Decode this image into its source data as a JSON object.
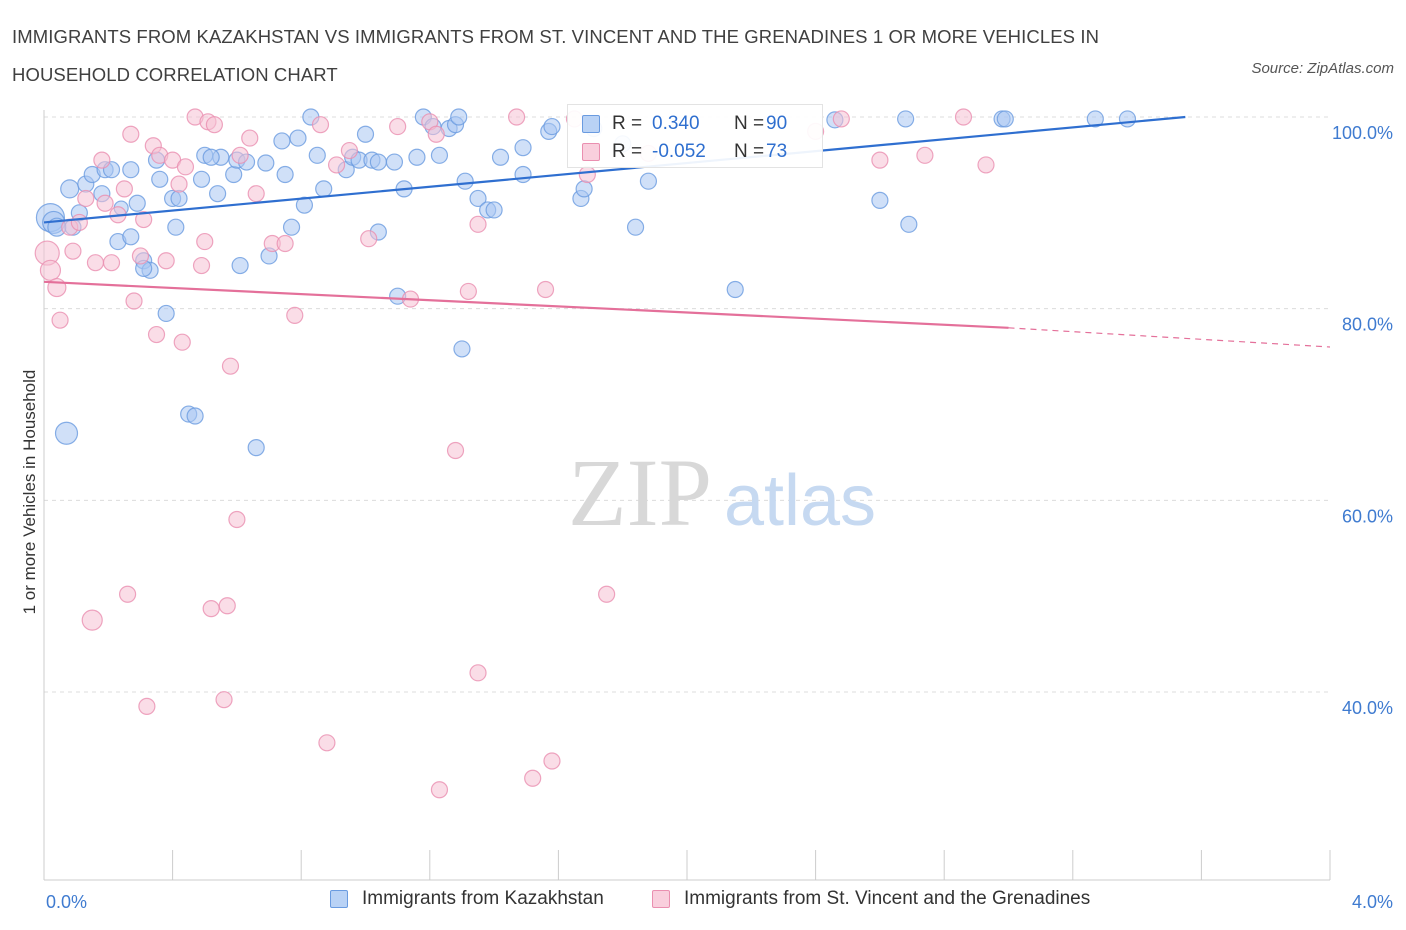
{
  "title": "IMMIGRANTS FROM KAZAKHSTAN VS IMMIGRANTS FROM ST. VINCENT AND THE GRENADINES 1 OR MORE VEHICLES IN HOUSEHOLD CORRELATION CHART",
  "source": "Source: ZipAtlas.com",
  "watermark": {
    "zip": "ZIP",
    "atlas": "atlas"
  },
  "legend_stats": [
    {
      "r_label": "R =",
      "r_value": "0.340",
      "n_label": "N =",
      "n_value": "90",
      "color": "#8fb4ee"
    },
    {
      "r_label": "R =",
      "r_value": "-0.052",
      "n_label": "N =",
      "n_value": "73",
      "color": "#f3a7c0"
    }
  ],
  "chart_data": {
    "type": "scatter",
    "title": "IMMIGRANTS FROM KAZAKHSTAN VS IMMIGRANTS FROM ST. VINCENT AND THE GRENADINES 1 OR MORE VEHICLES IN HOUSEHOLD CORRELATION CHART",
    "xlabel": "",
    "ylabel": "1 or more Vehicles in Household",
    "xlim": [
      0,
      4
    ],
    "ylim": [
      20,
      102
    ],
    "x_tick_labels": [
      "0.0%",
      "4.0%"
    ],
    "y_ticks": [
      40,
      60,
      80,
      100
    ],
    "y_tick_labels": [
      "40.0%",
      "60.0%",
      "80.0%",
      "100.0%"
    ],
    "grid": true,
    "legend_position": "bottom",
    "series": [
      {
        "name": "Immigrants from Kazakhstan",
        "color": "#6a9be0",
        "fill": "#a9c7f2",
        "trend": {
          "x0": 0.0,
          "y0": 89.0,
          "x1": 3.55,
          "y1": 100.0,
          "dash_to": null
        },
        "points": [
          [
            0.02,
            89.5,
            14
          ],
          [
            0.03,
            89.0,
            11
          ],
          [
            0.04,
            88.5,
            9
          ],
          [
            0.07,
            67.0,
            11
          ],
          [
            0.08,
            92.5,
            9
          ],
          [
            0.09,
            88.5,
            8
          ],
          [
            0.13,
            93.0,
            8
          ],
          [
            0.15,
            94.0,
            8
          ],
          [
            0.18,
            92.0,
            8
          ],
          [
            0.19,
            94.5,
            8
          ],
          [
            0.21,
            94.5,
            8
          ],
          [
            0.23,
            87.0,
            8
          ],
          [
            0.24,
            90.5,
            7
          ],
          [
            0.27,
            87.5,
            8
          ],
          [
            0.29,
            91.0,
            8
          ],
          [
            0.31,
            85.0,
            8
          ],
          [
            0.33,
            84.0,
            8
          ],
          [
            0.35,
            95.5,
            8
          ],
          [
            0.36,
            93.5,
            8
          ],
          [
            0.38,
            79.5,
            8
          ],
          [
            0.4,
            91.5,
            8
          ],
          [
            0.41,
            88.5,
            8
          ],
          [
            0.42,
            91.5,
            8
          ],
          [
            0.45,
            69.0,
            8
          ],
          [
            0.47,
            68.8,
            8
          ],
          [
            0.49,
            93.5,
            8
          ],
          [
            0.5,
            96.0,
            8
          ],
          [
            0.54,
            92.0,
            8
          ],
          [
            0.55,
            95.8,
            8
          ],
          [
            0.59,
            94.0,
            8
          ],
          [
            0.6,
            95.5,
            8
          ],
          [
            0.61,
            84.5,
            8
          ],
          [
            0.63,
            95.3,
            8
          ],
          [
            0.66,
            65.5,
            8
          ],
          [
            0.69,
            95.2,
            8
          ],
          [
            0.7,
            85.5,
            8
          ],
          [
            0.74,
            97.5,
            8
          ],
          [
            0.75,
            94.0,
            8
          ],
          [
            0.77,
            88.5,
            8
          ],
          [
            0.79,
            97.8,
            8
          ],
          [
            0.81,
            90.8,
            8
          ],
          [
            0.83,
            100.0,
            8
          ],
          [
            0.85,
            96.0,
            8
          ],
          [
            0.87,
            92.5,
            8
          ],
          [
            0.94,
            94.5,
            8
          ],
          [
            0.96,
            95.8,
            8
          ],
          [
            0.98,
            95.5,
            8
          ],
          [
            1.0,
            98.2,
            8
          ],
          [
            1.02,
            95.5,
            8
          ],
          [
            1.04,
            95.3,
            8
          ],
          [
            1.04,
            88.0,
            8
          ],
          [
            1.09,
            95.3,
            8
          ],
          [
            1.1,
            81.3,
            8
          ],
          [
            1.12,
            92.5,
            8
          ],
          [
            1.16,
            95.8,
            8
          ],
          [
            1.18,
            100.0,
            8
          ],
          [
            1.21,
            99.0,
            8
          ],
          [
            1.23,
            96.0,
            8
          ],
          [
            1.26,
            98.8,
            8
          ],
          [
            1.28,
            99.2,
            8
          ],
          [
            1.29,
            100.0,
            8
          ],
          [
            1.3,
            75.8,
            8
          ],
          [
            1.31,
            93.3,
            8
          ],
          [
            1.35,
            91.5,
            8
          ],
          [
            1.38,
            90.3,
            8
          ],
          [
            1.4,
            90.3,
            8
          ],
          [
            1.42,
            95.8,
            8
          ],
          [
            1.49,
            94.0,
            8
          ],
          [
            1.49,
            96.8,
            8
          ],
          [
            1.57,
            98.5,
            8
          ],
          [
            1.58,
            99.0,
            8
          ],
          [
            1.67,
            91.5,
            8
          ],
          [
            1.68,
            92.5,
            8
          ],
          [
            1.71,
            98.8,
            8
          ],
          [
            1.8,
            97.2,
            8
          ],
          [
            1.84,
            88.5,
            8
          ],
          [
            1.88,
            93.3,
            8
          ],
          [
            2.15,
            82.0,
            8
          ],
          [
            2.46,
            99.7,
            8
          ],
          [
            2.6,
            91.3,
            8
          ],
          [
            2.68,
            99.8,
            8
          ],
          [
            2.69,
            88.8,
            8
          ],
          [
            2.98,
            99.8,
            8
          ],
          [
            2.99,
            99.8,
            8
          ],
          [
            3.27,
            99.8,
            8
          ],
          [
            3.37,
            99.8,
            8
          ],
          [
            0.52,
            95.8,
            8
          ],
          [
            0.31,
            84.2,
            8
          ],
          [
            0.27,
            94.5,
            8
          ],
          [
            0.11,
            90.0,
            8
          ]
        ]
      },
      {
        "name": "Immigrants from St. Vincent and the Grenadines",
        "color": "#ea8fb0",
        "fill": "#f6c1d3",
        "trend": {
          "x0": 0.0,
          "y0": 82.8,
          "x1": 3.0,
          "y1": 78.0,
          "dash_to": {
            "x": 4.0,
            "y": 76.0
          }
        },
        "points": [
          [
            0.01,
            85.8,
            12
          ],
          [
            0.02,
            84.0,
            10
          ],
          [
            0.04,
            82.2,
            9
          ],
          [
            0.05,
            78.8,
            8
          ],
          [
            0.08,
            88.5,
            8
          ],
          [
            0.09,
            86.0,
            8
          ],
          [
            0.11,
            89.0,
            8
          ],
          [
            0.13,
            91.5,
            8
          ],
          [
            0.15,
            47.5,
            10
          ],
          [
            0.16,
            84.8,
            8
          ],
          [
            0.18,
            95.5,
            8
          ],
          [
            0.19,
            91.0,
            8
          ],
          [
            0.21,
            84.8,
            8
          ],
          [
            0.23,
            89.8,
            8
          ],
          [
            0.25,
            92.5,
            8
          ],
          [
            0.26,
            50.2,
            8
          ],
          [
            0.27,
            98.2,
            8
          ],
          [
            0.28,
            80.8,
            8
          ],
          [
            0.3,
            85.5,
            8
          ],
          [
            0.31,
            89.3,
            8
          ],
          [
            0.32,
            38.5,
            8
          ],
          [
            0.34,
            97.0,
            8
          ],
          [
            0.35,
            77.3,
            8
          ],
          [
            0.36,
            96.0,
            8
          ],
          [
            0.38,
            85.0,
            8
          ],
          [
            0.4,
            95.5,
            8
          ],
          [
            0.42,
            93.0,
            8
          ],
          [
            0.43,
            76.5,
            8
          ],
          [
            0.44,
            94.8,
            8
          ],
          [
            0.47,
            100.0,
            8
          ],
          [
            0.49,
            84.5,
            8
          ],
          [
            0.5,
            87.0,
            8
          ],
          [
            0.51,
            99.5,
            8
          ],
          [
            0.53,
            99.2,
            8
          ],
          [
            0.52,
            48.7,
            8
          ],
          [
            0.56,
            39.2,
            8
          ],
          [
            0.57,
            49.0,
            8
          ],
          [
            0.58,
            74.0,
            8
          ],
          [
            0.6,
            58.0,
            8
          ],
          [
            0.61,
            96.0,
            8
          ],
          [
            0.64,
            97.8,
            8
          ],
          [
            0.66,
            92.0,
            8
          ],
          [
            0.71,
            86.8,
            8
          ],
          [
            0.75,
            86.8,
            8
          ],
          [
            0.78,
            79.3,
            8
          ],
          [
            0.86,
            99.2,
            8
          ],
          [
            0.88,
            34.7,
            8
          ],
          [
            0.91,
            95.0,
            8
          ],
          [
            0.95,
            96.5,
            8
          ],
          [
            1.01,
            87.3,
            8
          ],
          [
            1.1,
            99.0,
            8
          ],
          [
            1.14,
            81.0,
            8
          ],
          [
            1.2,
            99.5,
            8
          ],
          [
            1.22,
            98.2,
            8
          ],
          [
            1.23,
            29.8,
            8
          ],
          [
            1.28,
            65.2,
            8
          ],
          [
            1.32,
            81.8,
            8
          ],
          [
            1.35,
            88.8,
            8
          ],
          [
            1.35,
            42.0,
            8
          ],
          [
            1.47,
            100.0,
            8
          ],
          [
            1.52,
            31.0,
            8
          ],
          [
            1.56,
            82.0,
            8
          ],
          [
            1.58,
            32.8,
            8
          ],
          [
            1.65,
            99.8,
            8
          ],
          [
            1.69,
            94.0,
            8
          ],
          [
            1.75,
            50.2,
            8
          ],
          [
            1.88,
            96.2,
            8
          ],
          [
            2.4,
            98.5,
            8
          ],
          [
            2.48,
            99.8,
            8
          ],
          [
            2.6,
            95.5,
            8
          ],
          [
            2.74,
            96.0,
            8
          ],
          [
            2.86,
            100.0,
            8
          ],
          [
            2.93,
            95.0,
            8
          ]
        ]
      }
    ]
  }
}
